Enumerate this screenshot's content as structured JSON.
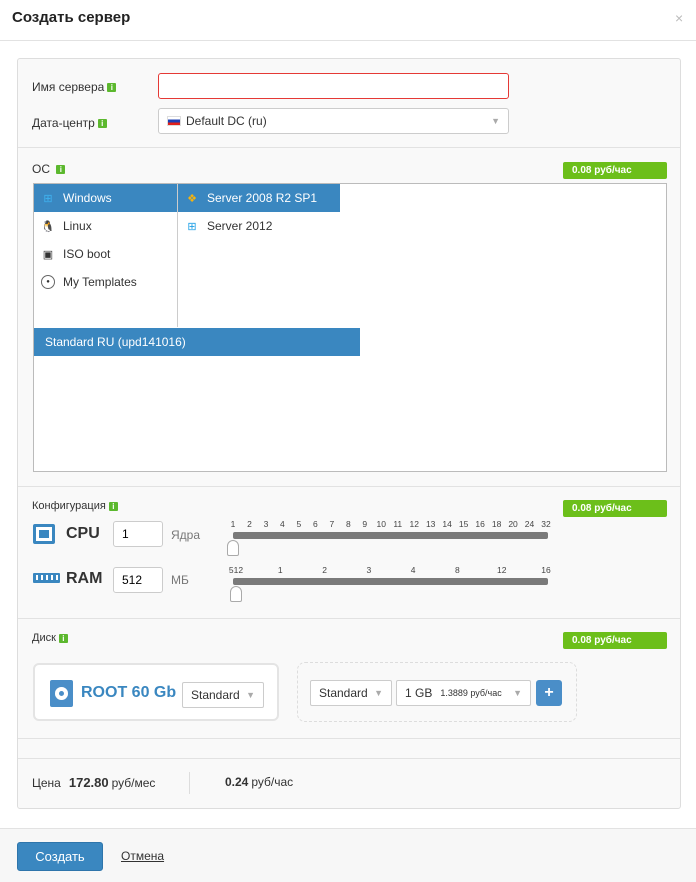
{
  "dialog": {
    "title": "Создать сервер",
    "close": "×"
  },
  "form": {
    "server_name": {
      "label": "Имя сервера",
      "value": "",
      "placeholder": ""
    },
    "datacenter": {
      "label": "Дата-центр",
      "value": "Default DC (ru)"
    }
  },
  "os": {
    "label": "ОС",
    "price": "0.08 руб/час",
    "families": [
      {
        "label": "Windows",
        "icon": "windows-icon",
        "selected": true
      },
      {
        "label": "Linux",
        "icon": "linux-icon"
      },
      {
        "label": "ISO boot",
        "icon": "iso-icon"
      },
      {
        "label": "My Templates",
        "icon": "template-icon"
      }
    ],
    "versions": [
      {
        "label": "Server 2008 R2 SP1",
        "icon": "windows7-icon",
        "selected": true
      },
      {
        "label": "Server 2012",
        "icon": "windows-icon"
      }
    ],
    "builds": [
      {
        "label": "Standard RU (upd141016)",
        "selected": true
      }
    ]
  },
  "config": {
    "label": "Конфигурация",
    "price": "0.08 руб/час",
    "cpu": {
      "label": "CPU",
      "value": "1",
      "unit": "Ядра",
      "ticks": [
        "1",
        "2",
        "3",
        "4",
        "5",
        "6",
        "7",
        "8",
        "9",
        "10",
        "11",
        "12",
        "13",
        "14",
        "15",
        "16",
        "18",
        "20",
        "24",
        "32"
      ],
      "selected_index": 0
    },
    "ram": {
      "label": "RAM",
      "value": "512",
      "unit": "МБ",
      "ticks": [
        "512",
        "1",
        "2",
        "3",
        "4",
        "8",
        "12",
        "16"
      ],
      "selected_index": 0
    }
  },
  "disk": {
    "label": "Диск",
    "price": "0.08 руб/час",
    "root": {
      "label": "ROOT 60 Gb",
      "type": "Standard"
    },
    "new": {
      "type": "Standard",
      "size": "1 GB",
      "size_price": "1.3889 руб/час",
      "add": "+"
    }
  },
  "price": {
    "label": "Цена",
    "monthly": "172.80",
    "monthly_unit": "руб/мес",
    "hourly": "0.24",
    "hourly_unit": "руб/час"
  },
  "footer": {
    "create": "Создать",
    "cancel": "Отмена"
  },
  "colors": {
    "accent": "#3a87c0",
    "price_badge": "#6cbf1a",
    "error_border": "#e53935"
  }
}
